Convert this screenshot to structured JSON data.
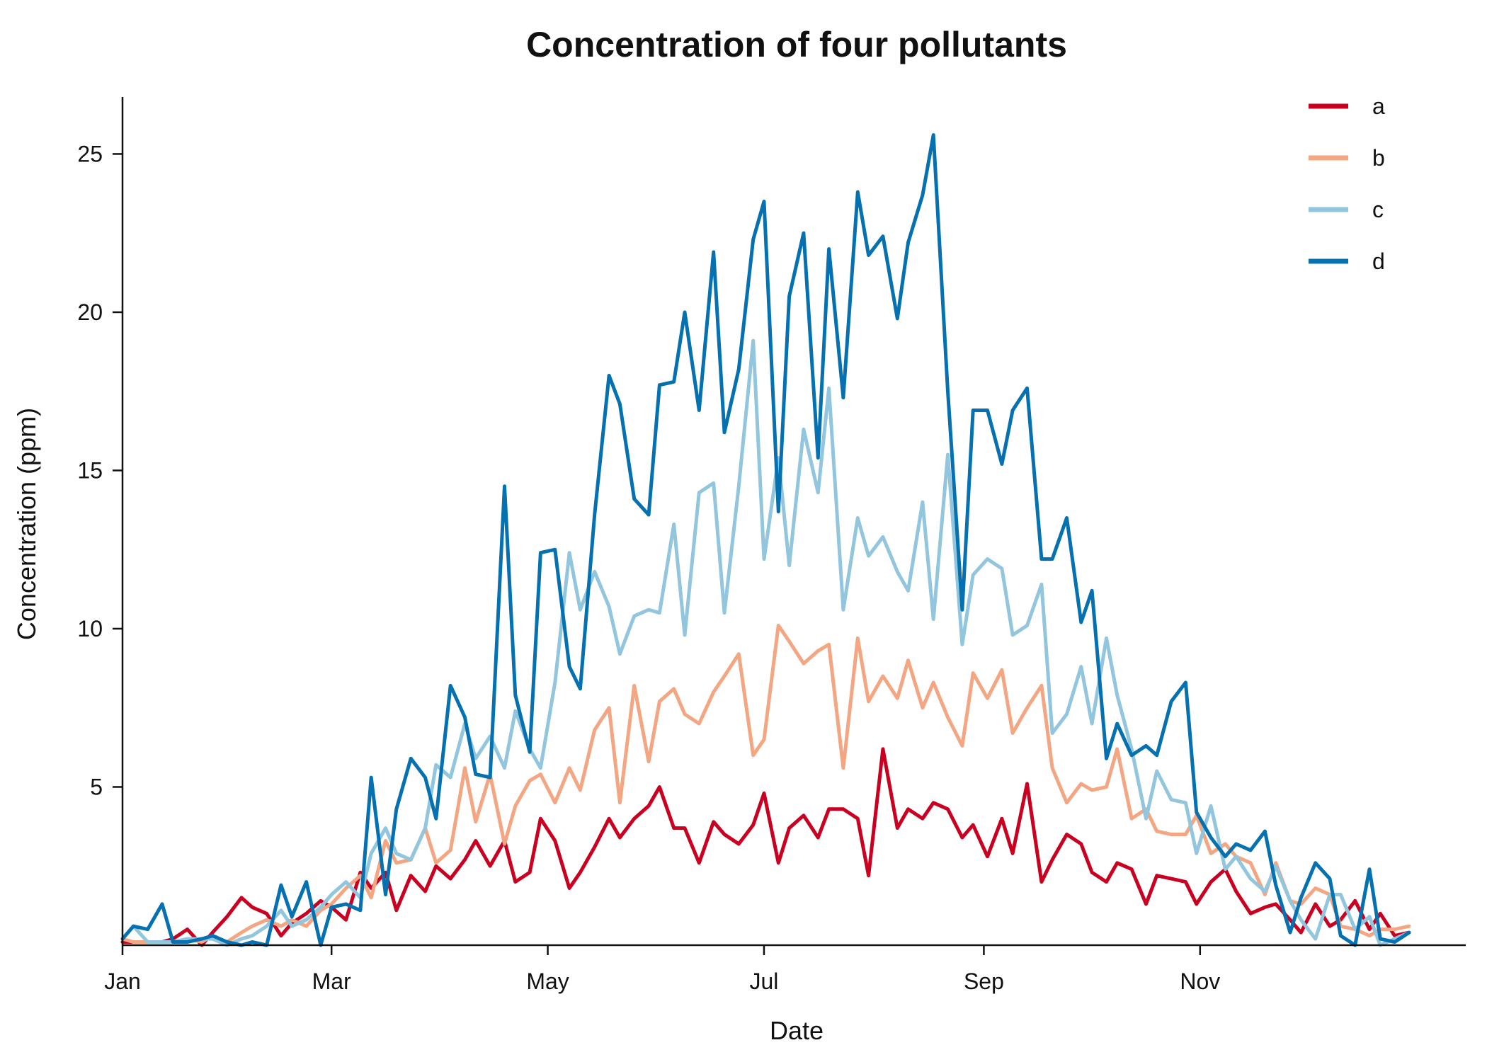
{
  "chart_data": {
    "type": "line",
    "title": "Concentration of four pollutants",
    "xlabel": "Date",
    "ylabel": "Concentration (ppm)",
    "xlim": [
      0,
      357
    ],
    "ylim": [
      0,
      26.8
    ],
    "x_ticks": [
      {
        "label": "Jan",
        "x": 0
      },
      {
        "label": "Mar",
        "x": 58
      },
      {
        "label": "May",
        "x": 118
      },
      {
        "label": "Jul",
        "x": 178
      },
      {
        "label": "Sep",
        "x": 239
      },
      {
        "label": "Nov",
        "x": 299
      }
    ],
    "y_ticks": [
      5,
      10,
      15,
      20,
      25
    ],
    "grid": false,
    "legend_position": "top-right",
    "x": [
      0,
      3,
      7,
      11,
      14,
      18,
      22,
      25,
      29,
      33,
      36,
      40,
      44,
      47,
      51,
      55,
      58,
      62,
      66,
      69,
      73,
      76,
      80,
      84,
      87,
      91,
      95,
      98,
      102,
      106,
      109,
      113,
      116,
      120,
      124,
      127,
      131,
      135,
      138,
      142,
      146,
      149,
      153,
      156,
      160,
      164,
      167,
      171,
      175,
      178,
      182,
      185,
      189,
      193,
      196,
      200,
      204,
      207,
      211,
      215,
      218,
      222,
      225,
      229,
      233,
      236,
      240,
      244,
      247,
      251,
      255,
      258,
      262,
      266,
      269,
      273,
      276,
      280,
      284,
      287,
      291,
      295,
      298,
      302,
      306,
      309,
      313,
      317,
      320,
      324,
      327,
      331,
      335,
      338,
      342,
      346,
      349,
      353,
      357
    ],
    "series": [
      {
        "name": "a",
        "color": "#ca0020",
        "values": [
          0.1,
          0.1,
          0.1,
          0.1,
          0.2,
          0.5,
          0.0,
          0.4,
          0.9,
          1.5,
          1.2,
          1.0,
          0.3,
          0.7,
          1.0,
          1.4,
          1.2,
          0.8,
          2.3,
          1.8,
          2.3,
          1.1,
          2.2,
          1.7,
          2.5,
          2.1,
          2.7,
          3.3,
          2.5,
          3.3,
          2.0,
          2.3,
          4.0,
          3.3,
          1.8,
          2.3,
          3.1,
          4.0,
          3.4,
          4.0,
          4.4,
          5.0,
          3.7,
          3.7,
          2.6,
          3.9,
          3.5,
          3.2,
          3.8,
          4.8,
          2.6,
          3.7,
          4.1,
          3.4,
          4.3,
          4.3,
          4.0,
          2.2,
          6.2,
          3.7,
          4.3,
          4.0,
          4.5,
          4.3,
          3.4,
          3.8,
          2.8,
          4.0,
          2.9,
          5.1,
          2.0,
          2.7,
          3.5,
          3.2,
          2.3,
          2.0,
          2.6,
          2.4,
          1.3,
          2.2,
          2.1,
          2.0,
          1.3,
          2.0,
          2.4,
          1.7,
          1.0,
          1.2,
          1.3,
          0.8,
          0.4,
          1.3,
          0.6,
          0.8,
          1.4,
          0.5,
          1.0,
          0.3,
          0.4
        ]
      },
      {
        "name": "b",
        "color": "#f4a582",
        "values": [
          0.2,
          0.1,
          0.1,
          0.1,
          0.1,
          0.2,
          0.1,
          0.3,
          0.1,
          0.4,
          0.6,
          0.8,
          0.6,
          0.8,
          0.6,
          1.1,
          1.3,
          1.8,
          2.2,
          1.5,
          3.3,
          2.6,
          2.7,
          3.7,
          2.6,
          3.0,
          5.6,
          3.9,
          5.4,
          3.2,
          4.4,
          5.2,
          5.4,
          4.5,
          5.6,
          4.9,
          6.8,
          7.5,
          4.5,
          8.2,
          5.8,
          7.7,
          8.1,
          7.3,
          7.0,
          8.0,
          8.5,
          9.2,
          6.0,
          6.5,
          10.1,
          9.6,
          8.9,
          9.3,
          9.5,
          5.6,
          9.7,
          7.7,
          8.5,
          7.8,
          9.0,
          7.5,
          8.3,
          7.2,
          6.3,
          8.6,
          7.8,
          8.7,
          6.7,
          7.5,
          8.2,
          5.6,
          4.5,
          5.1,
          4.9,
          5.0,
          6.2,
          4.0,
          4.3,
          3.6,
          3.5,
          3.5,
          4.1,
          2.9,
          3.2,
          2.8,
          2.6,
          1.6,
          2.6,
          1.4,
          1.3,
          1.8,
          1.6,
          0.6,
          0.5,
          0.3,
          0.5,
          0.5,
          0.6
        ]
      },
      {
        "name": "c",
        "color": "#92c5de",
        "values": [
          0.2,
          0.6,
          0.1,
          0.1,
          0.1,
          0.2,
          0.2,
          0.2,
          0.0,
          0.2,
          0.3,
          0.6,
          1.1,
          0.6,
          0.8,
          1.2,
          1.6,
          2.0,
          1.5,
          2.9,
          3.7,
          2.9,
          2.7,
          3.7,
          5.7,
          5.3,
          7.0,
          5.9,
          6.6,
          5.6,
          7.4,
          6.2,
          5.6,
          8.3,
          12.4,
          10.6,
          11.8,
          10.7,
          9.2,
          10.4,
          10.6,
          10.5,
          13.3,
          9.8,
          14.3,
          14.6,
          10.5,
          14.5,
          19.1,
          12.2,
          15.4,
          12.0,
          16.3,
          14.3,
          17.6,
          10.6,
          13.5,
          12.3,
          12.9,
          11.8,
          11.2,
          14.0,
          10.3,
          15.5,
          9.5,
          11.7,
          12.2,
          11.9,
          9.8,
          10.1,
          11.4,
          6.7,
          7.3,
          8.8,
          7.0,
          9.7,
          7.9,
          6.2,
          4.0,
          5.5,
          4.6,
          4.5,
          2.9,
          4.4,
          2.4,
          2.8,
          2.1,
          1.7,
          2.5,
          1.4,
          0.8,
          0.2,
          1.6,
          1.6,
          0.5,
          0.9,
          0.0,
          0.2,
          0.4
        ]
      },
      {
        "name": "d",
        "color": "#0571b0",
        "values": [
          0.2,
          0.6,
          0.5,
          1.3,
          0.1,
          0.1,
          0.2,
          0.3,
          0.1,
          0.0,
          0.1,
          0.0,
          1.9,
          0.9,
          2.0,
          0.0,
          1.2,
          1.3,
          1.1,
          5.3,
          1.6,
          4.3,
          5.9,
          5.3,
          4.0,
          8.2,
          7.2,
          5.4,
          5.3,
          14.5,
          7.9,
          6.1,
          12.4,
          12.5,
          8.8,
          8.1,
          13.6,
          18.0,
          17.1,
          14.1,
          13.6,
          17.7,
          17.8,
          20.0,
          16.9,
          21.9,
          16.2,
          18.2,
          22.3,
          23.5,
          13.7,
          20.5,
          22.5,
          15.4,
          22.0,
          17.3,
          23.8,
          21.8,
          22.4,
          19.8,
          22.2,
          23.7,
          25.6,
          17.5,
          10.6,
          16.9,
          16.9,
          15.2,
          16.9,
          17.6,
          12.2,
          12.2,
          13.5,
          10.2,
          11.2,
          5.9,
          7.0,
          6.0,
          6.3,
          6.0,
          7.7,
          8.3,
          4.2,
          3.4,
          2.8,
          3.2,
          3.0,
          3.6,
          1.9,
          0.4,
          1.5,
          2.6,
          2.1,
          0.3,
          0.0,
          2.4,
          0.2,
          0.1,
          0.4
        ]
      }
    ]
  }
}
